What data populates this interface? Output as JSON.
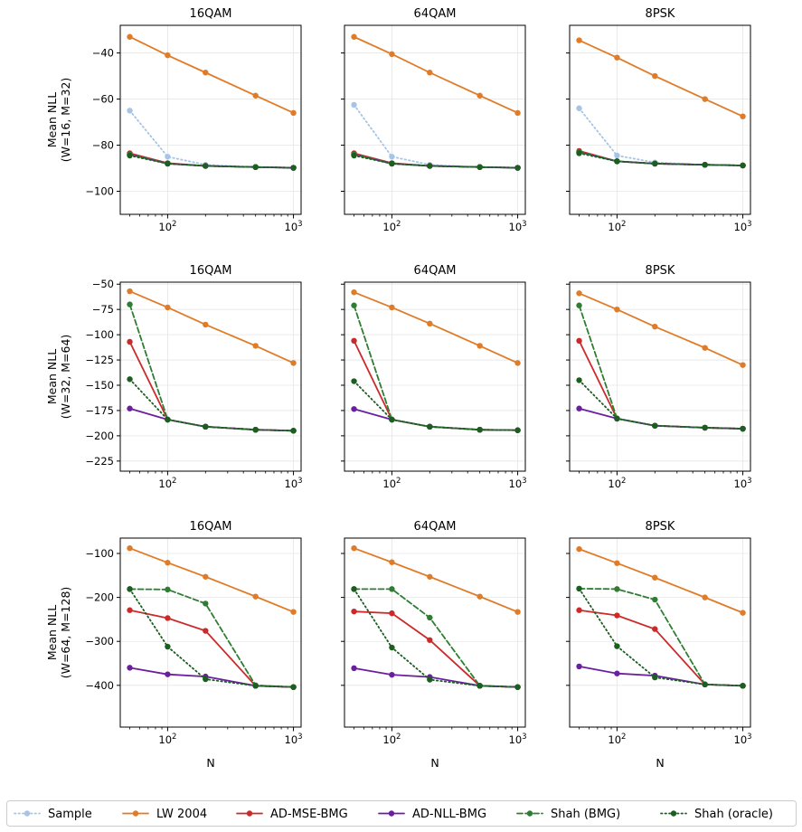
{
  "chart_data": {
    "type": "line",
    "x_scale": "log",
    "x": [
      50,
      100,
      200,
      500,
      1000
    ],
    "xlabel": "N",
    "grid": true,
    "legend_position": "bottom",
    "series_styles": [
      {
        "name": "Sample",
        "color": "#a6c4e6",
        "line": "dotted"
      },
      {
        "name": "LW 2004",
        "color": "#e07b28",
        "line": "solid"
      },
      {
        "name": "AD-MSE-BMG",
        "color": "#cc2a2a",
        "line": "solid"
      },
      {
        "name": "AD-NLL-BMG",
        "color": "#6a1fa0",
        "line": "solid"
      },
      {
        "name": "Shah (BMG)",
        "color": "#2e7d32",
        "line": "dashed"
      },
      {
        "name": "Shah (oracle)",
        "color": "#1b5e20",
        "line": "dotted"
      }
    ],
    "rows": [
      {
        "ylabel_line1": "Mean NLL",
        "ylabel_line2": "(W=16, M=32)",
        "ylim": [
          -110,
          -28
        ],
        "yticks": [
          -100,
          -80,
          -60,
          -40
        ],
        "ytick_labels": [
          "−100",
          "−80",
          "−60",
          "−40"
        ],
        "panels": [
          {
            "title": "16QAM",
            "series": [
              {
                "name": "Sample",
                "values": [
                  -65,
                  -85,
                  -88.5,
                  -89.5,
                  -90
                ]
              },
              {
                "name": "LW 2004",
                "values": [
                  -33,
                  -41,
                  -48.5,
                  -58.5,
                  -66
                ]
              },
              {
                "name": "AD-MSE-BMG",
                "values": [
                  -83.5,
                  -87.8,
                  -89,
                  -89.5,
                  -89.8
                ]
              },
              {
                "name": "AD-NLL-BMG",
                "values": [
                  -84,
                  -88,
                  -89,
                  -89.5,
                  -89.8
                ]
              },
              {
                "name": "Shah (BMG)",
                "values": [
                  -84,
                  -88,
                  -89,
                  -89.5,
                  -89.8
                ]
              },
              {
                "name": "Shah (oracle)",
                "values": [
                  -84.5,
                  -88,
                  -89,
                  -89.5,
                  -89.8
                ]
              }
            ]
          },
          {
            "title": "64QAM",
            "series": [
              {
                "name": "Sample",
                "values": [
                  -62.5,
                  -85,
                  -88.5,
                  -89.5,
                  -90
                ]
              },
              {
                "name": "LW 2004",
                "values": [
                  -33,
                  -40.5,
                  -48.5,
                  -58.5,
                  -66
                ]
              },
              {
                "name": "AD-MSE-BMG",
                "values": [
                  -83.5,
                  -87.8,
                  -89,
                  -89.5,
                  -89.8
                ]
              },
              {
                "name": "AD-NLL-BMG",
                "values": [
                  -84,
                  -88,
                  -89,
                  -89.5,
                  -89.8
                ]
              },
              {
                "name": "Shah (BMG)",
                "values": [
                  -84,
                  -88,
                  -89,
                  -89.5,
                  -89.8
                ]
              },
              {
                "name": "Shah (oracle)",
                "values": [
                  -84.5,
                  -88,
                  -89,
                  -89.5,
                  -89.8
                ]
              }
            ]
          },
          {
            "title": "8PSK",
            "series": [
              {
                "name": "Sample",
                "values": [
                  -64,
                  -84.5,
                  -87.5,
                  -88.5,
                  -88.8
                ]
              },
              {
                "name": "LW 2004",
                "values": [
                  -34.5,
                  -42,
                  -50,
                  -60,
                  -67.5
                ]
              },
              {
                "name": "AD-MSE-BMG",
                "values": [
                  -82.5,
                  -87,
                  -88,
                  -88.5,
                  -88.8
                ]
              },
              {
                "name": "AD-NLL-BMG",
                "values": [
                  -83,
                  -87,
                  -88,
                  -88.5,
                  -88.8
                ]
              },
              {
                "name": "Shah (BMG)",
                "values": [
                  -83,
                  -87,
                  -88,
                  -88.5,
                  -88.8
                ]
              },
              {
                "name": "Shah (oracle)",
                "values": [
                  -83.5,
                  -87,
                  -88,
                  -88.5,
                  -88.8
                ]
              }
            ]
          }
        ]
      },
      {
        "ylabel_line1": "Mean NLL",
        "ylabel_line2": "(W=32, M=64)",
        "ylim": [
          -235,
          -48
        ],
        "yticks": [
          -225,
          -200,
          -175,
          -150,
          -125,
          -100,
          -75,
          -50
        ],
        "ytick_labels": [
          "−225",
          "−200",
          "−175",
          "−150",
          "−125",
          "−100",
          "−75",
          "−50"
        ],
        "panels": [
          {
            "title": "16QAM",
            "series": [
              {
                "name": "LW 2004",
                "values": [
                  -57,
                  -73,
                  -90,
                  -111,
                  -128
                ]
              },
              {
                "name": "AD-MSE-BMG",
                "values": [
                  -107,
                  -184,
                  -191,
                  -194,
                  -195
                ]
              },
              {
                "name": "AD-NLL-BMG",
                "values": [
                  -173,
                  -184,
                  -191,
                  -194,
                  -195
                ]
              },
              {
                "name": "Shah (BMG)",
                "values": [
                  -70,
                  -184,
                  -191,
                  -194,
                  -195
                ]
              },
              {
                "name": "Shah (oracle)",
                "values": [
                  -144,
                  -184,
                  -191,
                  -194,
                  -195
                ]
              }
            ]
          },
          {
            "title": "64QAM",
            "series": [
              {
                "name": "LW 2004",
                "values": [
                  -58,
                  -73,
                  -89,
                  -111,
                  -128
                ]
              },
              {
                "name": "AD-MSE-BMG",
                "values": [
                  -106,
                  -184,
                  -191,
                  -194,
                  -194.5
                ]
              },
              {
                "name": "AD-NLL-BMG",
                "values": [
                  -173.5,
                  -184,
                  -191,
                  -194,
                  -194.5
                ]
              },
              {
                "name": "Shah (BMG)",
                "values": [
                  -71,
                  -184,
                  -191,
                  -194,
                  -194.5
                ]
              },
              {
                "name": "Shah (oracle)",
                "values": [
                  -146,
                  -184,
                  -191,
                  -194,
                  -194.5
                ]
              }
            ]
          },
          {
            "title": "8PSK",
            "series": [
              {
                "name": "LW 2004",
                "values": [
                  -59,
                  -75,
                  -92,
                  -113,
                  -130
                ]
              },
              {
                "name": "AD-MSE-BMG",
                "values": [
                  -106,
                  -183,
                  -190,
                  -192,
                  -193
                ]
              },
              {
                "name": "AD-NLL-BMG",
                "values": [
                  -173,
                  -183,
                  -190,
                  -192,
                  -193
                ]
              },
              {
                "name": "Shah (BMG)",
                "values": [
                  -71,
                  -183,
                  -190,
                  -192,
                  -193
                ]
              },
              {
                "name": "Shah (oracle)",
                "values": [
                  -145,
                  -183,
                  -190,
                  -192,
                  -193
                ]
              }
            ]
          }
        ]
      },
      {
        "ylabel_line1": "Mean NLL",
        "ylabel_line2": "(W=64, M=128)",
        "ylim": [
          -495,
          -65
        ],
        "yticks": [
          -400,
          -300,
          -200,
          -100
        ],
        "ytick_labels": [
          "−400",
          "−300",
          "−200",
          "−100"
        ],
        "panels": [
          {
            "title": "16QAM",
            "series": [
              {
                "name": "LW 2004",
                "values": [
                  -88,
                  -121,
                  -153,
                  -198,
                  -233
                ]
              },
              {
                "name": "AD-MSE-BMG",
                "values": [
                  -229,
                  -247,
                  -276,
                  -401,
                  -404
                ]
              },
              {
                "name": "AD-NLL-BMG",
                "values": [
                  -360,
                  -375,
                  -380,
                  -401,
                  -404
                ]
              },
              {
                "name": "Shah (BMG)",
                "values": [
                  -181,
                  -182,
                  -214,
                  -400,
                  -404
                ]
              },
              {
                "name": "Shah (oracle)",
                "values": [
                  -181,
                  -312,
                  -386,
                  -401,
                  -404
                ]
              }
            ]
          },
          {
            "title": "64QAM",
            "series": [
              {
                "name": "LW 2004",
                "values": [
                  -88,
                  -120,
                  -153,
                  -198,
                  -233
                ]
              },
              {
                "name": "AD-MSE-BMG",
                "values": [
                  -232,
                  -236,
                  -297,
                  -401,
                  -404
                ]
              },
              {
                "name": "AD-NLL-BMG",
                "values": [
                  -361,
                  -376,
                  -381,
                  -401,
                  -404
                ]
              },
              {
                "name": "Shah (BMG)",
                "values": [
                  -181,
                  -181,
                  -246,
                  -401,
                  -404
                ]
              },
              {
                "name": "Shah (oracle)",
                "values": [
                  -181,
                  -314,
                  -387,
                  -401,
                  -404
                ]
              }
            ]
          },
          {
            "title": "8PSK",
            "series": [
              {
                "name": "LW 2004",
                "values": [
                  -90,
                  -122,
                  -155,
                  -200,
                  -235
                ]
              },
              {
                "name": "AD-MSE-BMG",
                "values": [
                  -229,
                  -241,
                  -272,
                  -398,
                  -401
                ]
              },
              {
                "name": "AD-NLL-BMG",
                "values": [
                  -357,
                  -373,
                  -378,
                  -398,
                  -401
                ]
              },
              {
                "name": "Shah (BMG)",
                "values": [
                  -180,
                  -181,
                  -205,
                  -398,
                  -401
                ]
              },
              {
                "name": "Shah (oracle)",
                "values": [
                  -180,
                  -311,
                  -382,
                  -398,
                  -401
                ]
              }
            ]
          }
        ]
      }
    ],
    "legend": [
      "Sample",
      "LW 2004",
      "AD-MSE-BMG",
      "AD-NLL-BMG",
      "Shah (BMG)",
      "Shah (oracle)"
    ]
  }
}
